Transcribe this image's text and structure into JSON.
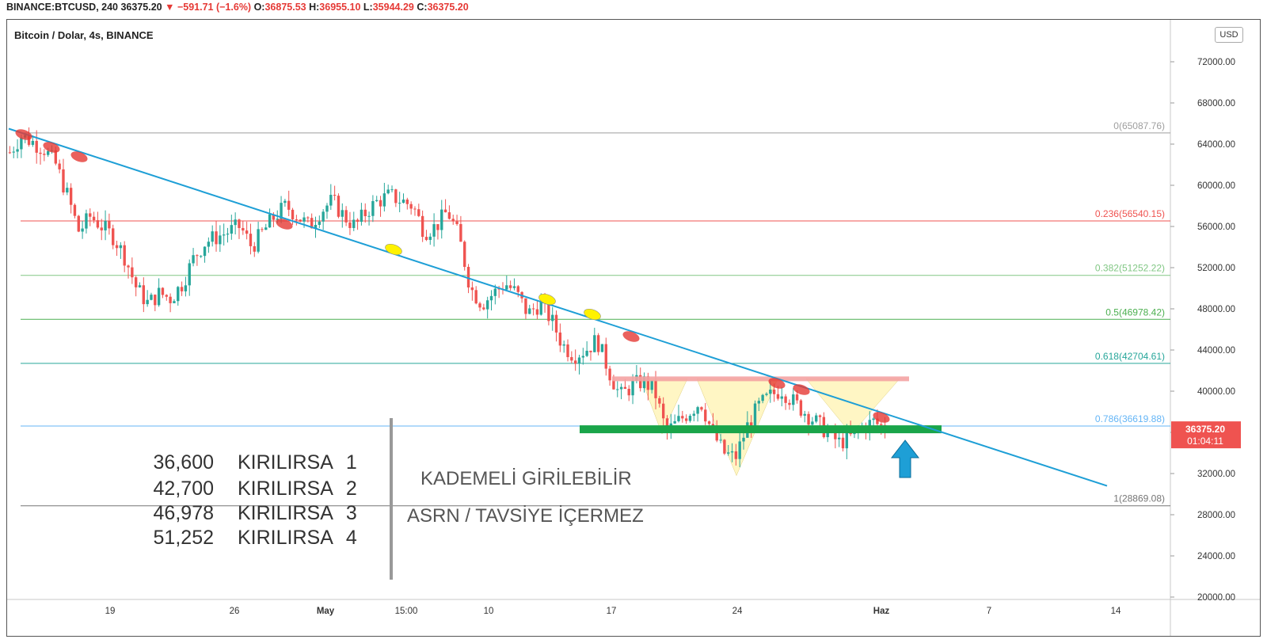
{
  "header": {
    "symbol": "BINANCE:BTCUSD, 240",
    "last": "36375.20",
    "change": "−591.71 (−1.6%)",
    "o_label": "O:",
    "o": "36875.53",
    "h_label": "H:",
    "h": "36955.10",
    "l_label": "L:",
    "l": "35944.29",
    "c_label": "C:",
    "c": "36375.20"
  },
  "chart_title": "Bitcoin / Dolar, 4s, BINANCE",
  "currency_button": "USD",
  "price_badge": {
    "price": "36375.20",
    "countdown": "01:04:11"
  },
  "conditions": [
    {
      "level": "36,600",
      "word": "KIRILIRSA",
      "num": "1"
    },
    {
      "level": "42,700",
      "word": "KIRILIRSA",
      "num": "2"
    },
    {
      "level": "46,978",
      "word": "KIRILIRSA",
      "num": "3"
    },
    {
      "level": "51,252",
      "word": "KIRILIRSA",
      "num": "4"
    }
  ],
  "notes": {
    "line1": "KADEMELİ GİRİLEBİLİR",
    "line2": "ASRN / TAVSİYE İÇERMEZ"
  },
  "chart_data": {
    "type": "candlestick",
    "title": "Bitcoin / Dolar, 4s, BINANCE",
    "ylim": [
      20000,
      74000
    ],
    "y_ticks": [
      "72000.00",
      "68000.00",
      "64000.00",
      "60000.00",
      "56000.00",
      "52000.00",
      "48000.00",
      "44000.00",
      "40000.00",
      "36000.00",
      "32000.00",
      "28000.00",
      "24000.00",
      "20000.00"
    ],
    "x_ticks": [
      "19",
      "26",
      "May",
      "15:00",
      "10",
      "17",
      "24",
      "Haz",
      "7",
      "14"
    ],
    "fib_levels": [
      {
        "label": "0(65087.76)",
        "value": 65087.76,
        "color": "#9e9e9e"
      },
      {
        "label": "0.236(56540.15)",
        "value": 56540.15,
        "color": "#ef5350"
      },
      {
        "label": "0.382(51252.22)",
        "value": 51252.22,
        "color": "#81c784"
      },
      {
        "label": "0.5(46978.42)",
        "value": 46978.42,
        "color": "#4caf50"
      },
      {
        "label": "0.618(42704.61)",
        "value": 42704.61,
        "color": "#26a69a"
      },
      {
        "label": "0.786(36619.88)",
        "value": 36619.88,
        "color": "#64b5f6"
      },
      {
        "label": "1(28869.08)",
        "value": 28869.08,
        "color": "#757575"
      }
    ],
    "trendline": {
      "from": 65500,
      "to": 30800,
      "color": "#1e9fd6"
    },
    "resistance_zone": 41200,
    "support_zone": 36300,
    "price_path": [
      63200,
      64800,
      64200,
      63500,
      62000,
      59000,
      55500,
      57000,
      56000,
      55000,
      53000,
      50000,
      48500,
      49500,
      49000,
      50500,
      53000,
      54500,
      55000,
      55500,
      56000,
      54000,
      55500,
      57000,
      58000,
      57000,
      56000,
      57500,
      58500,
      57000,
      56000,
      57500,
      58500,
      59000,
      58500,
      58000,
      55500,
      56000,
      57500,
      55000,
      50000,
      48500,
      49500,
      50500,
      49500,
      47500,
      48500,
      47000,
      44500,
      43500,
      44000,
      45000,
      42000,
      39500,
      40500,
      41000,
      40000,
      36000,
      37000,
      38000,
      39000,
      36000,
      34000,
      33500,
      36500,
      38500,
      39500,
      40200,
      39000,
      38000,
      37000,
      36000,
      35000,
      35500,
      36500,
      37000,
      36375
    ],
    "candle_up_color": "#26a69a",
    "candle_down_color": "#ef5350"
  }
}
